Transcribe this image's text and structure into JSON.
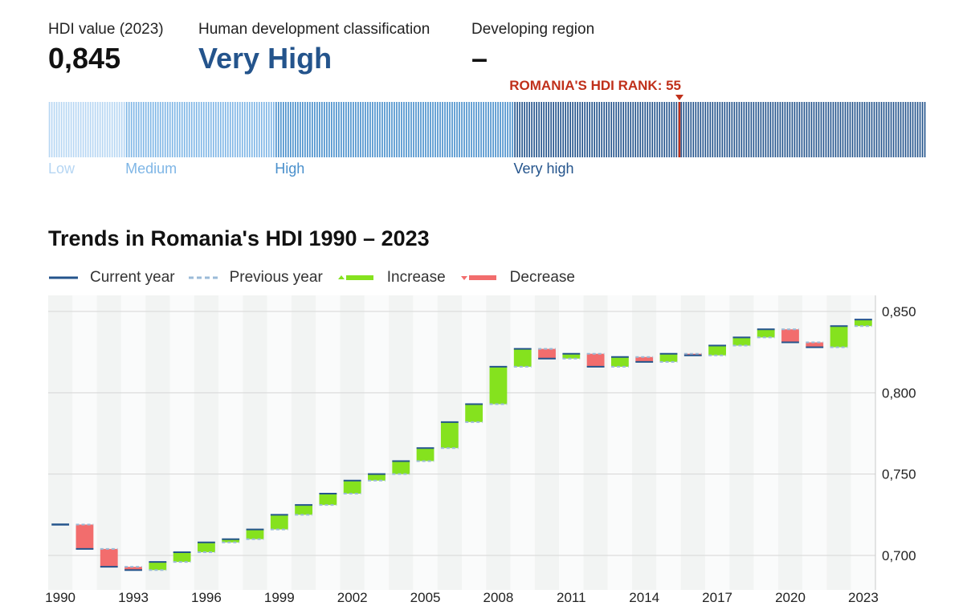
{
  "stats": {
    "hdi": {
      "label": "HDI value (2023)",
      "value": "0,845"
    },
    "classification": {
      "label": "Human development classification",
      "value": "Very High"
    },
    "region": {
      "label": "Developing region",
      "value": "–"
    }
  },
  "rank_bar": {
    "marker_label": "ROMANIA'S HDI RANK: 55",
    "rank": 55,
    "tiers": [
      {
        "name": "Low",
        "color": "#b6d6f3"
      },
      {
        "name": "Medium",
        "color": "#7fb6e6"
      },
      {
        "name": "High",
        "color": "#4a90cc"
      },
      {
        "name": "Very high",
        "color": "#24548c"
      }
    ],
    "marker_color": "#c0301a"
  },
  "chart_title": "Trends in Romania's HDI 1990 – 2023",
  "legend": {
    "current": "Current year",
    "previous": "Previous year",
    "increase": "Increase",
    "decrease": "Decrease"
  },
  "colors": {
    "increase": "#85e21e",
    "decrease": "#f26d6d",
    "current_line": "#24548c",
    "previous_line": "#9bbbd8"
  },
  "chart_data": {
    "type": "bar",
    "title": "Trends in Romania's HDI 1990 – 2023",
    "years": [
      1990,
      1991,
      1992,
      1993,
      1994,
      1995,
      1996,
      1997,
      1998,
      1999,
      2000,
      2001,
      2002,
      2003,
      2004,
      2005,
      2006,
      2007,
      2008,
      2009,
      2010,
      2011,
      2012,
      2013,
      2014,
      2015,
      2016,
      2017,
      2018,
      2019,
      2020,
      2021,
      2022,
      2023
    ],
    "values": [
      0.719,
      0.704,
      0.693,
      0.691,
      0.696,
      0.702,
      0.708,
      0.71,
      0.716,
      0.725,
      0.731,
      0.738,
      0.746,
      0.75,
      0.758,
      0.766,
      0.782,
      0.793,
      0.816,
      0.827,
      0.821,
      0.824,
      0.816,
      0.822,
      0.819,
      0.824,
      0.823,
      0.829,
      0.834,
      0.839,
      0.831,
      0.828,
      0.841,
      0.845
    ],
    "x_tick_labels": [
      "1990",
      "1993",
      "1996",
      "1999",
      "2002",
      "2005",
      "2008",
      "2011",
      "2014",
      "2017",
      "2020",
      "2023"
    ],
    "y_ticks": [
      0.7,
      0.75,
      0.8,
      0.85
    ],
    "y_tick_labels": [
      "0,700",
      "0,750",
      "0,800",
      "0,850"
    ],
    "ylim": [
      0.68,
      0.86
    ]
  }
}
